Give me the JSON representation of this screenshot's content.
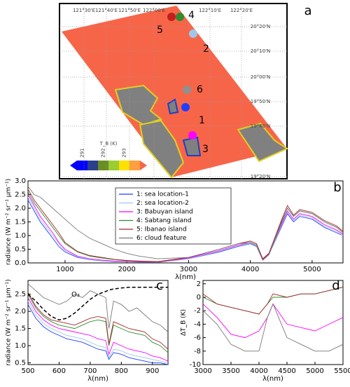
{
  "chart_data": [
    {
      "type": "map",
      "panel_label": "a",
      "lon_labels": [
        "121°30'E",
        "121°40'E",
        "121°50'E",
        "122°00'E",
        "122°10'E",
        "122°20'E"
      ],
      "lat_labels": [
        "20°20'N",
        "20°10'N",
        "20°00'N",
        "19°50'N",
        "19°40'N",
        "19°20'N"
      ],
      "locations": [
        "1",
        "2",
        "3",
        "4",
        "5",
        "6"
      ],
      "colorbar": {
        "label": "T_B (K)",
        "ticks": [
          291,
          292,
          293
        ]
      }
    },
    {
      "type": "line",
      "panel_label": "b",
      "xlabel": "λ(nm)",
      "ylabel": "radiance (W m⁻² sr⁻¹ μm⁻¹)",
      "x": [
        400,
        500,
        600,
        700,
        800,
        900,
        1000,
        1200,
        1400,
        1600,
        1800,
        2000,
        2200,
        2500,
        3000,
        3500,
        3800,
        4000,
        4100,
        4200,
        4300,
        4500,
        4600,
        4700,
        4800,
        5000,
        5200,
        5400,
        5500
      ],
      "xlim": [
        400,
        5500
      ],
      "xticks": [
        1000,
        2000,
        3000,
        4000,
        5000
      ],
      "ylim": [
        0,
        3
      ],
      "yticks": [
        {
          "value": 0,
          "label": "0.0"
        },
        0.5,
        {
          "value": 1,
          "label": "1.0"
        },
        1.5,
        {
          "value": 2,
          "label": "2.0"
        },
        2.5,
        {
          "value": 3,
          "label": "3.0"
        }
      ],
      "series": [
        {
          "name": "1: sea location-1",
          "color": "#1f3fff",
          "values": [
            2.3,
            1.9,
            1.5,
            1.2,
            0.9,
            0.6,
            0.4,
            0.2,
            0.12,
            0.08,
            0.05,
            0.04,
            0.03,
            0.02,
            0.15,
            0.4,
            0.6,
            0.7,
            0.6,
            0.1,
            0.3,
            1.3,
            1.8,
            1.5,
            1.7,
            1.6,
            1.3,
            1.1,
            1.0
          ]
        },
        {
          "name": "2: sea location-2",
          "color": "#9fc8e8",
          "values": [
            2.4,
            2.0,
            1.6,
            1.3,
            1.0,
            0.7,
            0.45,
            0.22,
            0.13,
            0.09,
            0.06,
            0.04,
            0.03,
            0.02,
            0.16,
            0.42,
            0.62,
            0.72,
            0.62,
            0.1,
            0.3,
            1.35,
            1.85,
            1.55,
            1.75,
            1.65,
            1.35,
            1.15,
            1.0
          ]
        },
        {
          "name": "3: Babuyan island",
          "color": "#ff00ff",
          "values": [
            2.5,
            2.1,
            1.7,
            1.4,
            1.1,
            0.75,
            0.5,
            0.25,
            0.15,
            0.1,
            0.07,
            0.05,
            0.04,
            0.03,
            0.18,
            0.45,
            0.65,
            0.75,
            0.65,
            0.12,
            0.32,
            1.4,
            1.9,
            1.6,
            1.8,
            1.7,
            1.4,
            1.2,
            1.05
          ]
        },
        {
          "name": "4: Sabtang island",
          "color": "#2e8b2e",
          "values": [
            2.6,
            2.2,
            1.9,
            1.6,
            1.3,
            1.0,
            0.7,
            0.4,
            0.25,
            0.18,
            0.12,
            0.08,
            0.06,
            0.04,
            0.2,
            0.5,
            0.7,
            0.8,
            0.7,
            0.15,
            0.35,
            1.5,
            2.0,
            1.7,
            1.9,
            1.8,
            1.5,
            1.3,
            1.1
          ]
        },
        {
          "name": "5: Ibanao island",
          "color": "#a52a2a",
          "values": [
            2.7,
            2.3,
            2.0,
            1.7,
            1.4,
            1.1,
            0.75,
            0.42,
            0.27,
            0.2,
            0.13,
            0.09,
            0.07,
            0.05,
            0.2,
            0.5,
            0.7,
            0.8,
            0.7,
            0.15,
            0.35,
            1.55,
            2.1,
            1.75,
            1.95,
            1.85,
            1.55,
            1.35,
            1.15
          ]
        },
        {
          "name": "6: cloud feature",
          "color": "#777777",
          "values": [
            2.8,
            2.5,
            2.4,
            2.2,
            2.0,
            1.8,
            1.6,
            1.2,
            0.9,
            0.7,
            0.5,
            0.35,
            0.25,
            0.15,
            0.2,
            0.5,
            0.7,
            0.75,
            0.65,
            0.1,
            0.3,
            1.45,
            2.0,
            1.7,
            1.9,
            1.8,
            1.5,
            1.3,
            1.1
          ]
        }
      ]
    },
    {
      "type": "line",
      "panel_label": "c",
      "xlabel": "λ(nm)",
      "ylabel": "radiance (W m⁻² sr⁻¹ μm⁻¹)",
      "annotation": "O₃",
      "x": [
        500,
        525,
        550,
        575,
        600,
        625,
        650,
        675,
        700,
        725,
        750,
        760,
        775,
        800,
        825,
        850,
        875,
        900,
        925,
        950
      ],
      "xlim": [
        500,
        950
      ],
      "xticks": [
        500,
        600,
        700,
        800,
        900
      ],
      "ylim": [
        0.45,
        2.9
      ],
      "yticks": [
        0.5,
        {
          "value": 1,
          "label": "1.0"
        },
        1.5,
        {
          "value": 2,
          "label": "2.0"
        },
        2.5
      ],
      "series": [
        {
          "color": "#1f3fff",
          "values": [
            2.2,
            1.8,
            1.55,
            1.4,
            1.3,
            1.2,
            1.15,
            1.1,
            1.0,
            0.9,
            0.85,
            0.6,
            0.8,
            0.75,
            0.65,
            0.6,
            0.55,
            0.5,
            0.5,
            0.45
          ]
        },
        {
          "color": "#9fc8e8",
          "values": [
            2.3,
            1.9,
            1.65,
            1.5,
            1.4,
            1.3,
            1.25,
            1.2,
            1.1,
            1.0,
            0.95,
            0.65,
            0.9,
            0.85,
            0.75,
            0.7,
            0.65,
            0.6,
            0.55,
            0.5
          ]
        },
        {
          "color": "#ff00ff",
          "values": [
            2.4,
            2.0,
            1.75,
            1.6,
            1.5,
            1.45,
            1.4,
            1.35,
            1.3,
            1.2,
            1.15,
            0.75,
            1.1,
            1.0,
            0.9,
            0.85,
            0.8,
            0.7,
            0.65,
            0.55
          ]
        },
        {
          "color": "#2e8b2e",
          "values": [
            2.5,
            2.1,
            1.85,
            1.7,
            1.6,
            1.55,
            1.5,
            1.6,
            1.7,
            1.75,
            1.7,
            1.0,
            1.6,
            1.5,
            1.4,
            1.35,
            1.3,
            1.1,
            1.0,
            0.8
          ]
        },
        {
          "color": "#a52a2a",
          "values": [
            2.55,
            2.15,
            1.9,
            1.75,
            1.7,
            1.65,
            1.6,
            1.7,
            1.8,
            1.85,
            1.8,
            1.05,
            1.7,
            1.6,
            1.5,
            1.45,
            1.4,
            1.2,
            1.1,
            0.9
          ]
        },
        {
          "color": "#777777",
          "values": [
            2.8,
            2.6,
            2.4,
            2.3,
            2.2,
            2.3,
            2.5,
            2.4,
            2.6,
            2.5,
            2.4,
            1.5,
            2.3,
            2.2,
            2.0,
            2.1,
            1.9,
            1.7,
            1.6,
            1.4
          ]
        }
      ],
      "ozone_curve": {
        "color": "#000000",
        "values": [
          2.5,
          2.3,
          2.05,
          1.85,
          1.75,
          1.8,
          1.95,
          2.15,
          2.35,
          2.5,
          2.58,
          2.62,
          2.65,
          2.68,
          2.7,
          2.7,
          2.7,
          2.7,
          2.7,
          2.7
        ]
      }
    },
    {
      "type": "line",
      "panel_label": "d",
      "xlabel": "λ(nm)",
      "ylabel": "ΔT_B (K)",
      "x": [
        3000,
        3250,
        3500,
        3750,
        4000,
        4150,
        4250,
        4500,
        4750,
        5000,
        5250,
        5500
      ],
      "xlim": [
        3000,
        5500
      ],
      "xticks": [
        3000,
        3500,
        4000,
        4500,
        5000,
        5500
      ],
      "ylim": [
        -10,
        2.5
      ],
      "yticks": [
        -10,
        -8,
        -6,
        -4,
        -2,
        0,
        2
      ],
      "series": [
        {
          "color": "#2e8b2e",
          "values": [
            0,
            -1,
            -1.5,
            -2,
            -2.5,
            -1,
            0,
            0,
            0.5,
            0.5,
            1,
            1.5
          ]
        },
        {
          "color": "#a52a2a",
          "values": [
            0.5,
            -1,
            -1.5,
            -2,
            -2.5,
            -1,
            0.5,
            0,
            0.5,
            0.5,
            1,
            1.5
          ]
        },
        {
          "color": "#ff00ff",
          "values": [
            -1,
            -3,
            -5.5,
            -6,
            -5,
            -3,
            -1,
            -4,
            -4.5,
            -5,
            -4,
            -3
          ]
        },
        {
          "color": "#777777",
          "values": [
            -2,
            -4,
            -7,
            -8,
            -8,
            -3,
            -1,
            -6,
            -7,
            -8,
            -8,
            -7
          ]
        }
      ]
    }
  ]
}
